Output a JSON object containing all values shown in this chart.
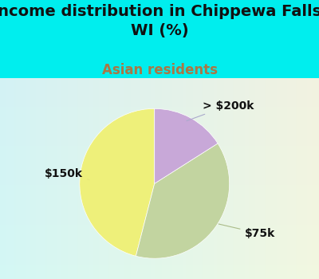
{
  "title": "Income distribution in Chippewa Falls,\nWI (%)",
  "subtitle": "Asian residents",
  "title_fontsize": 14,
  "subtitle_fontsize": 12,
  "subtitle_color": "#aa7744",
  "title_color": "#111111",
  "background_color": "#00eeee",
  "slices": [
    {
      "label": "$150k",
      "value": 46,
      "color": "#eef07a"
    },
    {
      "label": "$75k",
      "value": 38,
      "color": "#c2d4a0"
    },
    {
      "label": "> $200k",
      "value": 16,
      "color": "#c8a8d8"
    }
  ],
  "start_angle": 90,
  "label_fontsize": 10,
  "label_color": "#111111",
  "leader_colors": [
    "#e8e878",
    "#aabb88",
    "#aaaacc"
  ]
}
